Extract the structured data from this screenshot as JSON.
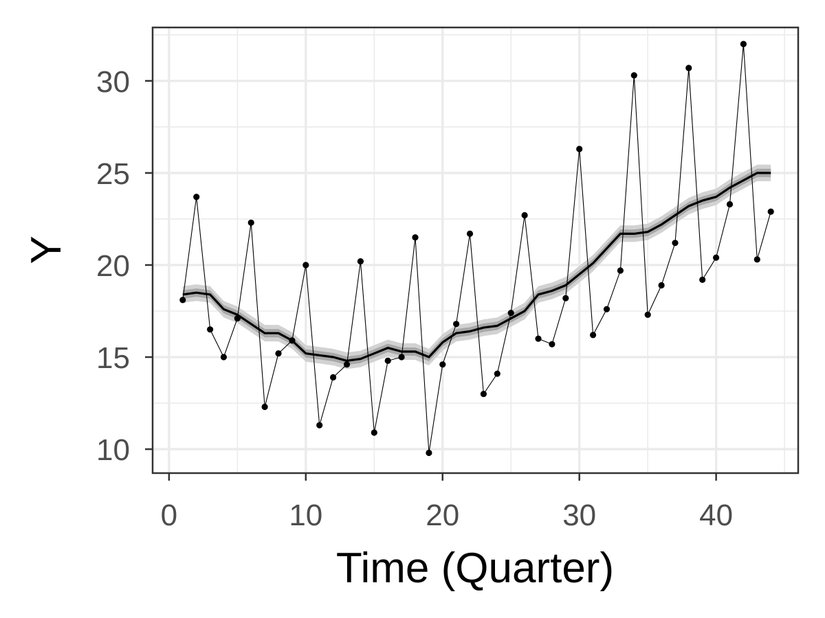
{
  "chart_data": {
    "type": "line",
    "title": "",
    "xlabel": "Time (Quarter)",
    "ylabel": "Y",
    "xlim": [
      -1.2,
      46
    ],
    "ylim": [
      8.7,
      32.9
    ],
    "x_ticks": [
      0,
      10,
      20,
      30,
      40
    ],
    "y_ticks": [
      10,
      15,
      20,
      25,
      30
    ],
    "x_tick_labels": [
      "0",
      "10",
      "20",
      "30",
      "40"
    ],
    "y_tick_labels": [
      "10",
      "15",
      "20",
      "25",
      "30"
    ],
    "grid": true,
    "legend": "none",
    "x": [
      1,
      2,
      3,
      4,
      5,
      6,
      7,
      8,
      9,
      10,
      11,
      12,
      13,
      14,
      15,
      16,
      17,
      18,
      19,
      20,
      21,
      22,
      23,
      24,
      25,
      26,
      27,
      28,
      29,
      30,
      31,
      32,
      33,
      34,
      35,
      36,
      37,
      38,
      39,
      40,
      41,
      42,
      43,
      44
    ],
    "series": [
      {
        "role": "observed",
        "values": [
          18.1,
          23.7,
          16.5,
          15.0,
          17.1,
          22.3,
          12.3,
          15.2,
          15.9,
          20.0,
          11.3,
          13.9,
          14.6,
          20.2,
          10.9,
          14.8,
          15.0,
          21.5,
          9.8,
          14.6,
          16.8,
          21.7,
          13.0,
          14.1,
          17.4,
          22.7,
          16.0,
          15.7,
          18.2,
          26.3,
          16.2,
          17.6,
          19.7,
          30.3,
          17.3,
          18.9,
          21.2,
          30.7,
          19.2,
          20.4,
          23.3,
          32.0,
          20.3,
          22.9
        ]
      },
      {
        "role": "trend",
        "values": [
          18.4,
          18.5,
          18.4,
          17.6,
          17.3,
          16.8,
          16.3,
          16.3,
          15.9,
          15.2,
          15.1,
          15.0,
          14.8,
          14.9,
          15.2,
          15.5,
          15.3,
          15.3,
          15.0,
          15.8,
          16.3,
          16.4,
          16.6,
          16.7,
          17.1,
          17.5,
          18.4,
          18.6,
          18.9,
          19.5,
          20.1,
          20.9,
          21.7,
          21.7,
          21.8,
          22.2,
          22.7,
          23.2,
          23.5,
          23.7,
          24.2,
          24.6,
          25.0,
          25.0
        ],
        "band": 0.45
      }
    ],
    "colors": {
      "panel_border": "#333333",
      "grid": "#ebebeb",
      "line": "#000000",
      "band_outer": "#d2d2d2",
      "band_inner": "#a8a8a8"
    }
  }
}
